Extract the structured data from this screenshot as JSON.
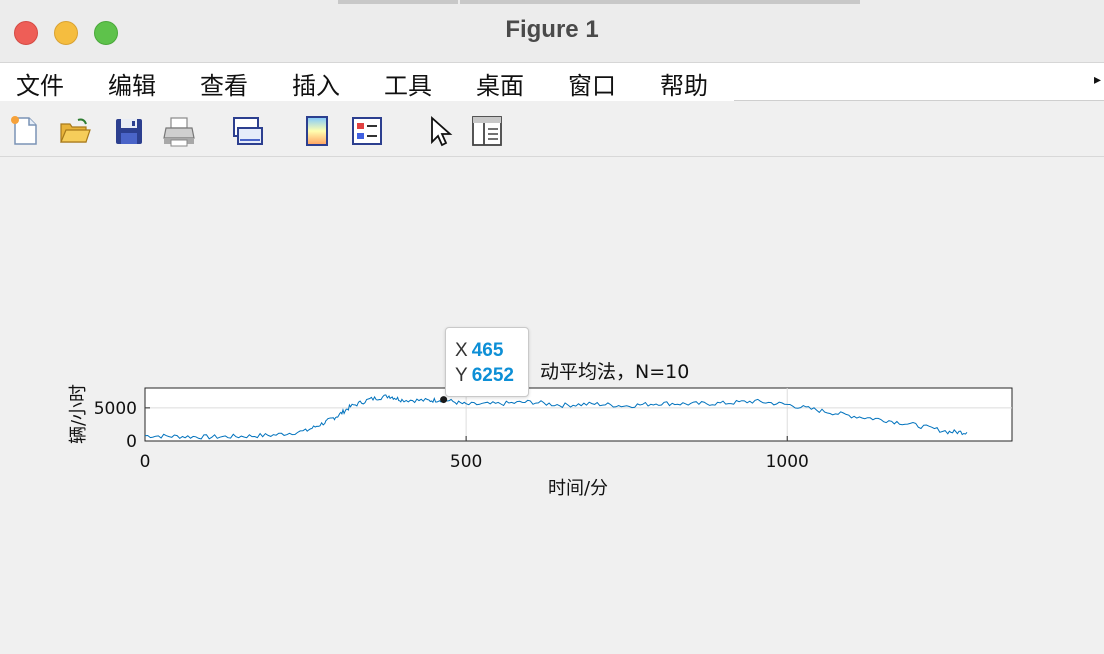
{
  "window": {
    "title": "Figure 1"
  },
  "menu": {
    "items": [
      "文件",
      "编辑",
      "查看",
      "插入",
      "工具",
      "桌面",
      "窗口",
      "帮助"
    ]
  },
  "toolbar": {
    "buttons": [
      "new-file-icon",
      "open-folder-icon",
      "save-icon",
      "print-icon",
      "link-plot-icon",
      "colorbar-icon",
      "legend-icon",
      "pointer-icon",
      "property-panel-icon"
    ]
  },
  "datatip": {
    "x_label": "X",
    "x_value": "465",
    "y_label": "Y",
    "y_value": "6252"
  },
  "chart_data": {
    "type": "line",
    "title": "动平均法，N=10",
    "xlabel": "时间/分",
    "ylabel": "辆/小时",
    "xlim": [
      0,
      1350
    ],
    "ylim": [
      0,
      8000
    ],
    "xticks": [
      "0",
      "500",
      "1000"
    ],
    "yticks": [
      "0",
      "5000"
    ],
    "grid": true,
    "series_color": "#0072bd",
    "x": [
      0,
      50,
      100,
      150,
      200,
      250,
      280,
      300,
      320,
      350,
      380,
      400,
      440,
      465,
      500,
      550,
      600,
      650,
      700,
      750,
      800,
      850,
      900,
      950,
      1000,
      1050,
      1100,
      1150,
      1200,
      1250,
      1280
    ],
    "y": [
      800,
      700,
      600,
      700,
      900,
      1500,
      2800,
      3800,
      5200,
      6300,
      6800,
      6200,
      6100,
      6252,
      5500,
      5600,
      5900,
      5400,
      5600,
      5300,
      5700,
      5600,
      5700,
      6000,
      5500,
      4600,
      3800,
      3200,
      2400,
      1400,
      1300
    ]
  }
}
